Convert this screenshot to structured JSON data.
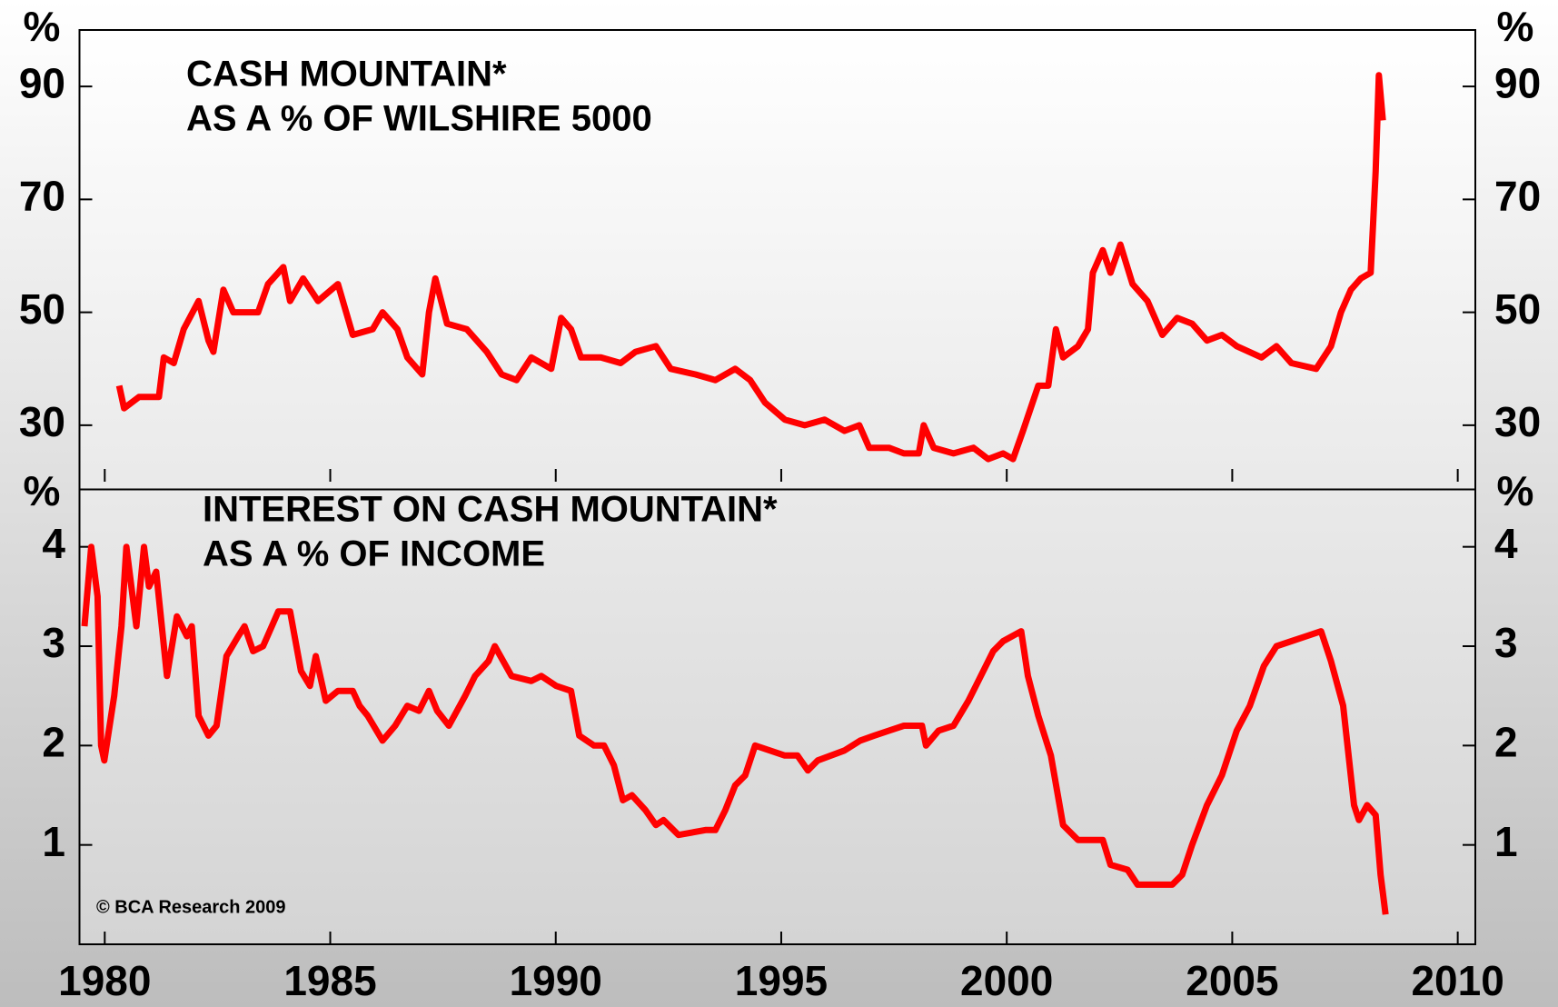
{
  "chart_data": [
    {
      "type": "line",
      "title": [
        "CASH MOUNTAIN*",
        "AS A % OF WILSHIRE 5000"
      ],
      "y_label": "%",
      "xlim": [
        1979.44,
        2010.39
      ],
      "xticks": [
        1980,
        1985,
        1990,
        1995,
        2000,
        2005,
        2010
      ],
      "ylim": [
        20,
        100
      ],
      "yticks": [
        30,
        50,
        70,
        90
      ],
      "series": [
        {
          "color": "#ff0000",
          "x": [
            1980.32,
            1980.43,
            1980.76,
            1981.2,
            1981.31,
            1981.53,
            1981.75,
            1982.08,
            1982.3,
            1982.41,
            1982.63,
            1982.85,
            1983.4,
            1983.62,
            1983.96,
            1984.11,
            1984.4,
            1984.73,
            1985.17,
            1985.5,
            1985.94,
            1986.16,
            1986.49,
            1986.71,
            1987.04,
            1987.19,
            1987.33,
            1987.59,
            1988.03,
            1988.47,
            1988.8,
            1989.13,
            1989.46,
            1989.9,
            1990.12,
            1990.34,
            1990.56,
            1991.0,
            1991.44,
            1991.77,
            1992.22,
            1992.55,
            1993.1,
            1993.54,
            1993.98,
            1994.31,
            1994.64,
            1995.08,
            1995.52,
            1995.96,
            1996.4,
            1996.73,
            1996.95,
            1997.39,
            1997.72,
            1998.05,
            1998.16,
            1998.38,
            1998.82,
            1999.26,
            1999.59,
            1999.92,
            2000.14,
            2000.36,
            2000.7,
            2000.92,
            2001.09,
            2001.25,
            2001.58,
            2001.8,
            2001.91,
            2002.13,
            2002.3,
            2002.52,
            2002.79,
            2003.12,
            2003.45,
            2003.78,
            2004.11,
            2004.44,
            2004.77,
            2005.1,
            2005.65,
            2005.98,
            2006.31,
            2006.86,
            2007.19,
            2007.41,
            2007.63,
            2007.85,
            2008.07,
            2008.18,
            2008.25,
            2008.34
          ],
          "values": [
            37,
            33,
            35,
            35,
            42,
            41,
            47,
            52,
            45,
            43,
            54,
            50,
            50,
            55,
            58,
            52,
            56,
            52,
            55,
            46,
            47,
            50,
            47,
            42,
            39,
            50,
            56,
            48,
            47,
            43,
            39,
            38,
            42,
            40,
            49,
            47,
            42,
            42,
            41,
            43,
            44,
            40,
            39,
            38,
            40,
            38,
            34,
            31,
            30,
            31,
            29,
            30,
            26,
            26,
            25,
            25,
            30,
            26,
            25,
            26,
            24,
            25,
            24,
            29,
            37,
            37,
            47,
            42,
            44,
            47,
            57,
            61,
            57,
            62,
            55,
            52,
            46,
            49,
            48,
            45,
            46,
            44,
            42,
            44,
            41,
            40,
            44,
            50,
            54,
            56,
            57,
            75,
            92,
            84
          ]
        }
      ]
    },
    {
      "type": "line",
      "title": [
        "INTEREST ON CASH MOUNTAIN*",
        "AS A % OF INCOME"
      ],
      "y_label": "%",
      "source": "© BCA Research 2009",
      "xlim": [
        1979.44,
        2010.39
      ],
      "xticks": [
        1980,
        1985,
        1990,
        1995,
        2000,
        2005,
        2010
      ],
      "ylim": [
        0,
        4.5
      ],
      "yticks": [
        1,
        2,
        3,
        4
      ],
      "series": [
        {
          "color": "#ff0000",
          "x": [
            1979.55,
            1979.7,
            1979.84,
            1979.92,
            1979.99,
            1980.21,
            1980.37,
            1980.48,
            1980.7,
            1980.87,
            1980.98,
            1981.14,
            1981.38,
            1981.6,
            1981.82,
            1981.93,
            1982.08,
            1982.3,
            1982.48,
            1982.7,
            1982.96,
            1983.1,
            1983.29,
            1983.51,
            1983.85,
            1984.11,
            1984.35,
            1984.55,
            1984.68,
            1984.9,
            1985.17,
            1985.5,
            1985.65,
            1985.83,
            1986.16,
            1986.44,
            1986.71,
            1986.97,
            1987.19,
            1987.37,
            1987.63,
            1987.99,
            1988.21,
            1988.51,
            1988.65,
            1989.02,
            1989.46,
            1989.68,
            1990.01,
            1990.34,
            1990.52,
            1990.85,
            1991.07,
            1991.29,
            1991.49,
            1991.69,
            1991.99,
            1992.22,
            1992.39,
            1992.72,
            1993.32,
            1993.54,
            1993.76,
            1993.98,
            1994.2,
            1994.42,
            1994.75,
            1995.08,
            1995.36,
            1995.59,
            1995.81,
            1996.4,
            1996.75,
            1997.06,
            1997.39,
            1997.72,
            1998.12,
            1998.21,
            1998.49,
            1998.82,
            1999.15,
            1999.37,
            1999.7,
            1999.92,
            2000.32,
            2000.47,
            2000.7,
            2000.98,
            2001.25,
            2001.58,
            2002.13,
            2002.3,
            2002.68,
            2002.9,
            2003.67,
            2003.89,
            2004.11,
            2004.44,
            2004.77,
            2005.1,
            2005.39,
            2005.7,
            2005.98,
            2006.31,
            2006.64,
            2006.97,
            2007.19,
            2007.46,
            2007.7,
            2007.81,
            2007.99,
            2008.18,
            2008.29,
            2008.4
          ],
          "values": [
            3.2,
            4.0,
            3.5,
            2.0,
            1.85,
            2.5,
            3.2,
            4.0,
            3.2,
            4.0,
            3.6,
            3.75,
            2.7,
            3.3,
            3.1,
            3.2,
            2.3,
            2.1,
            2.2,
            2.9,
            3.1,
            3.2,
            2.95,
            3.0,
            3.35,
            3.35,
            2.75,
            2.6,
            2.9,
            2.45,
            2.55,
            2.55,
            2.4,
            2.3,
            2.05,
            2.2,
            2.4,
            2.35,
            2.55,
            2.35,
            2.2,
            2.5,
            2.7,
            2.85,
            3.0,
            2.7,
            2.65,
            2.7,
            2.6,
            2.55,
            2.1,
            2.0,
            2.0,
            1.8,
            1.45,
            1.5,
            1.35,
            1.2,
            1.25,
            1.1,
            1.15,
            1.15,
            1.35,
            1.6,
            1.7,
            2.0,
            1.95,
            1.9,
            1.9,
            1.75,
            1.85,
            1.95,
            2.05,
            2.1,
            2.15,
            2.2,
            2.2,
            2.0,
            2.15,
            2.2,
            2.45,
            2.65,
            2.95,
            3.05,
            3.15,
            2.7,
            2.3,
            1.9,
            1.2,
            1.05,
            1.05,
            0.8,
            0.75,
            0.6,
            0.6,
            0.7,
            1.0,
            1.4,
            1.7,
            2.15,
            2.4,
            2.8,
            3.0,
            3.05,
            3.1,
            3.15,
            2.85,
            2.4,
            1.4,
            1.25,
            1.4,
            1.3,
            0.7,
            0.3
          ]
        }
      ]
    }
  ]
}
